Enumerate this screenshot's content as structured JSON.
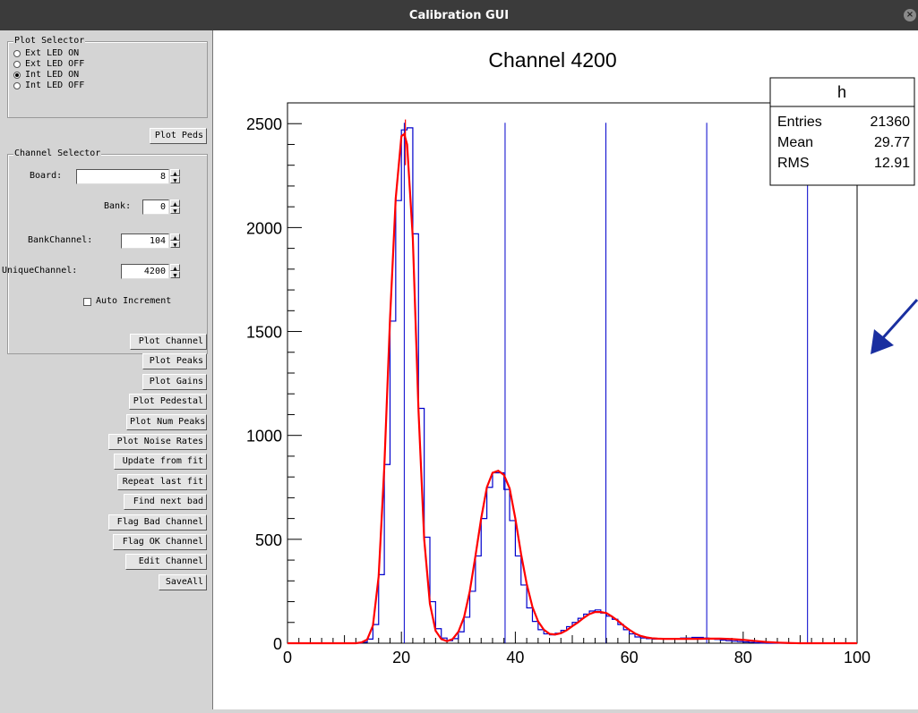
{
  "window": {
    "title": "Calibration GUI",
    "close_glyph": "×"
  },
  "plot_selector": {
    "label": "Plot Selector",
    "options": [
      "Ext LED ON",
      "Ext LED OFF",
      "Int LED ON",
      "Int LED OFF"
    ],
    "selected_index": 2
  },
  "plot_peds_label": "Plot Peds",
  "channel_selector": {
    "label": "Channel Selector",
    "board_label": "Board:",
    "board_value": "8",
    "bank_label": "Bank:",
    "bank_value": "0",
    "bankchannel_label": "BankChannel:",
    "bankchannel_value": "104",
    "uniquechannel_label": "UniqueChannel:",
    "uniquechannel_value": "4200",
    "auto_increment_label": "Auto Increment",
    "auto_increment_checked": false
  },
  "actions": [
    "Plot Channel",
    "Plot Peaks",
    "Plot Gains",
    "Plot Pedestal",
    "Plot Num Peaks",
    "Plot Noise Rates",
    "Update from fit",
    "Repeat last fit",
    "Find next bad",
    "Flag Bad Channel",
    "Flag OK Channel",
    "Edit Channel",
    "SaveAll"
  ],
  "stats_box": {
    "title": "h",
    "rows": [
      {
        "label": "Entries",
        "value": "21360"
      },
      {
        "label": "Mean",
        "value": "29.77"
      },
      {
        "label": "RMS",
        "value": "12.91"
      }
    ]
  },
  "chart_data": {
    "type": "line",
    "title": "Channel 4200",
    "xlabel": "",
    "ylabel": "",
    "xlim": [
      0,
      100
    ],
    "ylim": [
      0,
      2600
    ],
    "x_ticks": [
      0,
      20,
      40,
      60,
      80,
      100
    ],
    "y_ticks": [
      0,
      500,
      1000,
      1500,
      2000,
      2500
    ],
    "peak_lines": [
      20.5,
      38.2,
      55.9,
      73.6,
      91.3
    ],
    "series": [
      {
        "kind": "histogram",
        "color": "#0000cc",
        "x": [
          12,
          13,
          14,
          15,
          16,
          17,
          18,
          19,
          20,
          21,
          22,
          23,
          24,
          25,
          26,
          27,
          28,
          29,
          30,
          31,
          32,
          33,
          34,
          35,
          36,
          37,
          38,
          39,
          40,
          41,
          42,
          43,
          44,
          45,
          46,
          47,
          48,
          49,
          50,
          51,
          52,
          53,
          54,
          55,
          56,
          57,
          58,
          59,
          60,
          61,
          62,
          63,
          64,
          65,
          66,
          67,
          68,
          69,
          70,
          71,
          72,
          73,
          74,
          75,
          76,
          77,
          78,
          79,
          80,
          81,
          82,
          83,
          84,
          85
        ],
        "y": [
          0,
          5,
          20,
          90,
          330,
          860,
          1550,
          2130,
          2470,
          2480,
          1970,
          1130,
          510,
          200,
          70,
          25,
          12,
          22,
          55,
          125,
          250,
          420,
          600,
          750,
          820,
          820,
          740,
          590,
          420,
          280,
          170,
          105,
          65,
          45,
          40,
          48,
          62,
          80,
          100,
          120,
          140,
          155,
          160,
          145,
          130,
          115,
          90,
          65,
          45,
          30,
          25,
          22,
          20,
          20,
          20,
          22,
          22,
          25,
          25,
          28,
          28,
          25,
          22,
          18,
          15,
          12,
          10,
          8,
          6,
          4,
          2,
          1,
          0,
          0
        ]
      },
      {
        "kind": "fit",
        "color": "#ff0000",
        "x": [
          0,
          12,
          13,
          14,
          15,
          16,
          17,
          18,
          19,
          20,
          20.5,
          21,
          22,
          23,
          24,
          25,
          26,
          27,
          28,
          29,
          30,
          31,
          32,
          33,
          34,
          35,
          36,
          37,
          38,
          39,
          40,
          41,
          42,
          43,
          44,
          45,
          46,
          47,
          48,
          49,
          50,
          51,
          52,
          53,
          54,
          55,
          56,
          57,
          58,
          59,
          60,
          61,
          62,
          63,
          64,
          65,
          66,
          67,
          68,
          70,
          72,
          74,
          76,
          78,
          80,
          82,
          84,
          86,
          88,
          90,
          95,
          100
        ],
        "y": [
          0,
          0,
          4,
          18,
          85,
          320,
          850,
          1560,
          2140,
          2440,
          2450,
          2400,
          1950,
          1120,
          500,
          190,
          60,
          20,
          10,
          20,
          55,
          125,
          250,
          420,
          600,
          750,
          820,
          830,
          810,
          745,
          600,
          430,
          285,
          175,
          105,
          65,
          45,
          42,
          48,
          62,
          82,
          100,
          122,
          140,
          150,
          150,
          145,
          128,
          108,
          85,
          65,
          47,
          35,
          28,
          24,
          22,
          21,
          21,
          21,
          21,
          21,
          22,
          22,
          20,
          16,
          11,
          6,
          3,
          1,
          0,
          0,
          0
        ]
      }
    ]
  }
}
